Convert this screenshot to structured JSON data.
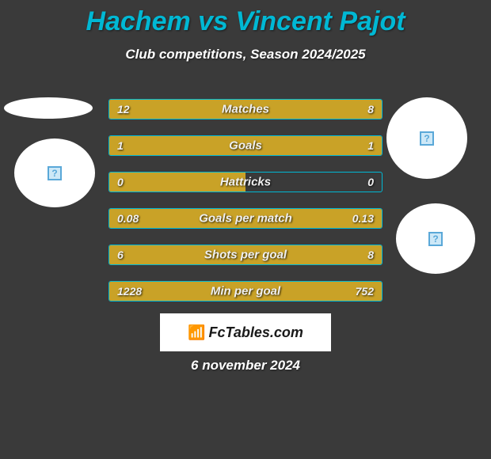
{
  "header": {
    "title": "Hachem vs Vincent Pajot",
    "subtitle": "Club competitions, Season 2024/2025"
  },
  "comparison": {
    "bar_background": "#3a3a3a",
    "bar_border_color": "#00b8d4",
    "bar_fill_color": "#c9a227",
    "text_color": "#f0f0f0",
    "rows": [
      {
        "label": "Matches",
        "left_value": "12",
        "right_value": "8",
        "left_pct": 60,
        "right_pct": 40
      },
      {
        "label": "Goals",
        "left_value": "1",
        "right_value": "1",
        "left_pct": 50,
        "right_pct": 50
      },
      {
        "label": "Hattricks",
        "left_value": "0",
        "right_value": "0",
        "left_pct": 50,
        "right_pct": 0
      },
      {
        "label": "Goals per match",
        "left_value": "0.08",
        "right_value": "0.13",
        "left_pct": 38,
        "right_pct": 62
      },
      {
        "label": "Shots per goal",
        "left_value": "6",
        "right_value": "8",
        "left_pct": 43,
        "right_pct": 57
      },
      {
        "label": "Min per goal",
        "left_value": "1228",
        "right_value": "752",
        "left_pct": 62,
        "right_pct": 38
      }
    ]
  },
  "placeholder_icon": {
    "glyph": "?",
    "border_color": "#5aa8d8",
    "bg_color": "#cde8f7"
  },
  "logo": {
    "site_name": "FcTables.com",
    "icon_glyph": "📶"
  },
  "footer": {
    "date": "6 november 2024"
  },
  "colors": {
    "page_bg": "#3a3a3a",
    "title_color": "#00b8d4",
    "text_white": "#ffffff"
  }
}
